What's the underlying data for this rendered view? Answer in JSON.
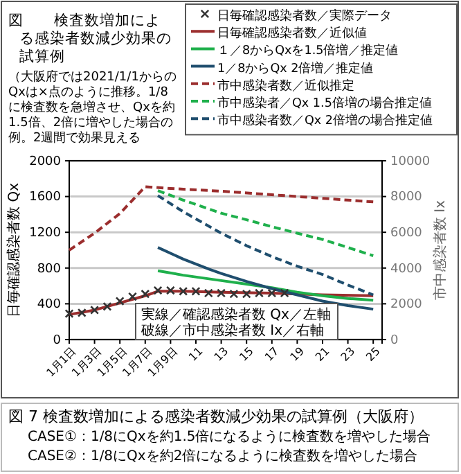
{
  "chart_data": {
    "type": "line",
    "title": "図　　検査数増加による感染者数減少効果の試算例",
    "subtitle": "（大阪府では2021/1/1からのQxは×点のように推移。1/8に検査数を急増させ、Qxを約1.5倍、2倍に増やした場合の例。2週間で効果見える",
    "ylabel": "日毎確認感染者数 Qx",
    "y2label": "市中感染者数 Ix",
    "xlim": [
      1,
      25.7
    ],
    "xticks": [
      {
        "value": 1,
        "label": "1月1日"
      },
      {
        "value": 3,
        "label": "1月3日"
      },
      {
        "value": 5,
        "label": "1月5日"
      },
      {
        "value": 7,
        "label": "1月7日"
      },
      {
        "value": 9,
        "label": "1月9日"
      },
      11,
      13,
      15,
      17,
      19,
      21,
      23,
      25
    ],
    "ylim": [
      0,
      2000
    ],
    "yticks": [
      0,
      400,
      800,
      1200,
      1600,
      2000
    ],
    "y2lim": [
      0,
      10000
    ],
    "y2ticks": [
      0,
      2000,
      4000,
      6000,
      8000,
      10000
    ],
    "grid": "y",
    "legend": "top right",
    "series": [
      {
        "name": "日毎確認感染者数／実際データ",
        "type": "scatter",
        "marker": "cross",
        "color": "#333333",
        "x": [
          1,
          2,
          3,
          4,
          5,
          6,
          7,
          8,
          9,
          10,
          11,
          12,
          13,
          14,
          15,
          16,
          17,
          18
        ],
        "values": [
          290,
          300,
          330,
          370,
          430,
          480,
          510,
          550,
          550,
          540,
          540,
          520,
          520,
          510,
          510,
          520,
          520,
          520
        ]
      },
      {
        "name": "日毎確認感染者数／近似値",
        "color": "#9b2d2d",
        "x": [
          1,
          3,
          5,
          7,
          8,
          10,
          13,
          17,
          21,
          25
        ],
        "values": [
          280,
          330,
          410,
          490,
          540,
          540,
          530,
          520,
          500,
          490
        ]
      },
      {
        "name": "１／8からQxを1.5倍増／推定値",
        "color": "#1fb04c",
        "x": [
          8,
          10,
          13,
          15,
          17,
          19,
          21,
          23,
          25
        ],
        "values": [
          770,
          720,
          660,
          620,
          580,
          530,
          490,
          460,
          440
        ]
      },
      {
        "name": "1／8からQx 2倍増／推定値",
        "color": "#1f4e6e",
        "x": [
          8,
          10,
          12,
          13,
          15,
          17,
          19,
          21,
          23,
          25
        ],
        "values": [
          1030,
          900,
          790,
          740,
          650,
          570,
          500,
          430,
          380,
          340
        ]
      },
      {
        "name": "市中感染者数／近似推定",
        "color": "#9b2d2d",
        "axis": "y2",
        "line_style": "dashed",
        "x": [
          1,
          3,
          5,
          7,
          9,
          13,
          17,
          21,
          25
        ],
        "values": [
          5000,
          5950,
          7050,
          8550,
          8450,
          8300,
          8100,
          7900,
          7700
        ]
      },
      {
        "name": "市中感染者／Qx 1.5倍増の場合推定値",
        "color": "#1fb04c",
        "axis": "y2",
        "line_style": "dashed",
        "x": [
          8,
          10,
          13,
          15,
          17,
          19,
          21,
          23,
          25
        ],
        "values": [
          8330,
          7800,
          7070,
          6700,
          6310,
          5950,
          5600,
          5150,
          4690
        ]
      },
      {
        "name": "市中感染者数／Qx 2倍増の場合推定値",
        "color": "#1f4e6e",
        "axis": "y2",
        "line_style": "dashed",
        "x": [
          8,
          10,
          13,
          15,
          17,
          19,
          21,
          23,
          25
        ],
        "values": [
          8050,
          7150,
          5950,
          5250,
          4640,
          4100,
          3640,
          3050,
          2500
        ]
      }
    ],
    "annotations": [
      "実線／確認感染者数 Qx／左軸",
      "破線／市中感染者数 Ix／右軸",
      "図 7  検査数増加による感染者数減少効果の試算例（大阪府）",
      "CASE①：1/8にQxを約1.5倍になるように検査数を増やした場合",
      "CASE②：1/8にQxを約2倍になるように検査数を増やした場合"
    ]
  }
}
